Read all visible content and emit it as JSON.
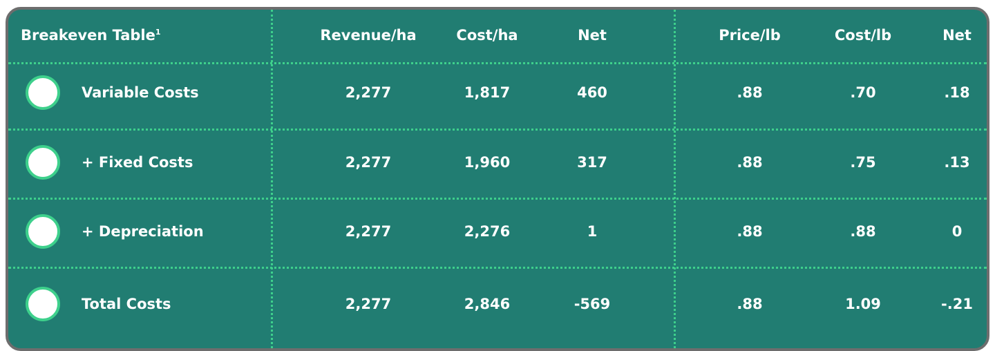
{
  "table": {
    "title": "Breakeven Table",
    "footnote_mark": "1",
    "headers": [
      "Revenue/ha",
      "Cost/ha",
      "Net",
      "Price/lb",
      "Cost/lb",
      "Net"
    ],
    "rows": [
      {
        "label": "Variable Costs",
        "cells": [
          "2,277",
          "1,817",
          "460",
          ".88",
          ".70",
          ".18"
        ]
      },
      {
        "label": "+ Fixed Costs",
        "cells": [
          "2,277",
          "1,960",
          "317",
          ".88",
          ".75",
          ".13"
        ]
      },
      {
        "label": "+ Depreciation",
        "cells": [
          "2,277",
          "2,276",
          "1",
          ".88",
          ".88",
          "0"
        ]
      },
      {
        "label": "Total Costs",
        "cells": [
          "2,277",
          "2,846",
          "-569",
          ".88",
          "1.09",
          "-.21"
        ]
      }
    ]
  }
}
